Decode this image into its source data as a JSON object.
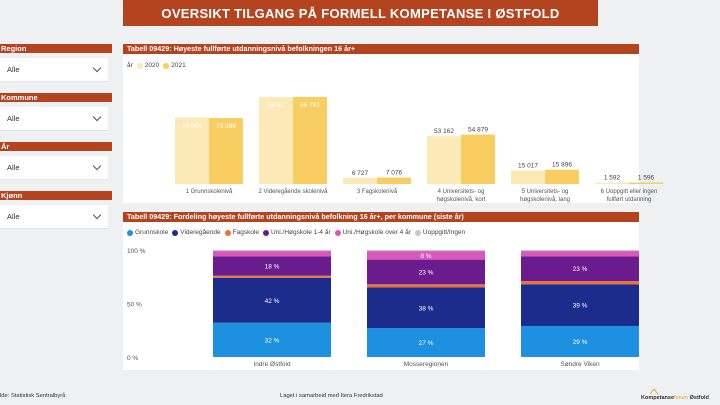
{
  "header": {
    "title": "OVERSIKT TILGANG PÅ FORMELL KOMPETANSE I ØSTFOLD"
  },
  "slicers": [
    {
      "label": "Region",
      "value": "Alle"
    },
    {
      "label": "Kommune",
      "value": "Alle"
    },
    {
      "label": "År",
      "value": "Alle"
    },
    {
      "label": "Kjønn",
      "value": "Alle"
    }
  ],
  "panel1": {
    "title": "Tabell 09429: Høyeste fullførte utdanningsnivå befolkningen 16 år+",
    "legend_title": "år",
    "series_names": [
      "2020",
      "2021"
    ]
  },
  "panel2": {
    "title": "Tabell 09429: Fordeling høyeste fullførte utdanningsnivå befolkning 16 år+, per kommune (siste år)",
    "legend": [
      "Grunnskole",
      "Videregående",
      "Fagskole",
      "Uni./Høgskole 1-4 år",
      "Uni./Høgskole over 4 år",
      "Uoppgitt/Ingen"
    ]
  },
  "chart_data": [
    {
      "type": "bar",
      "title": "Tabell 09429: Høyeste fullførte utdanningsnivå befolkningen 16 år+",
      "categories": [
        [
          "1 Grunnskolenivå"
        ],
        [
          "2 Videregående skolenivå"
        ],
        [
          "3 Fagskolenivå"
        ],
        [
          "4 Universitets- og",
          "høgskolenivå, kort"
        ],
        [
          "5 Universitets- og",
          "høgskolenivå, lang"
        ],
        [
          "6 Uoppgitt eller ingen",
          "fullført utdanning"
        ]
      ],
      "series": [
        {
          "name": "2020",
          "values": [
            74054,
            96600,
            6727,
            53162,
            15017,
            1592
          ],
          "labels": [
            "74 054",
            "96 6..",
            "6 727",
            "53 162",
            "15 017",
            "1 592"
          ]
        },
        {
          "name": "2021",
          "values": [
            73296,
            96791,
            7076,
            54879,
            15896,
            1596
          ],
          "labels": [
            "73 296",
            "96 791",
            "7 076",
            "54 879",
            "15 896",
            "1 596"
          ]
        }
      ],
      "colors": [
        "#fbe9b8",
        "#f8cd62"
      ],
      "legend_position": "top-left"
    },
    {
      "type": "bar",
      "stacked": true,
      "title": "Tabell 09429: Fordeling høyeste fullførte utdanningsnivå befolkning 16 år+, per kommune (siste år)",
      "categories": [
        "Indre Østfold",
        "Mosseregionen",
        "Søndre Viken"
      ],
      "yticks": [
        "0 %",
        "50 %",
        "100 %"
      ],
      "ylim": [
        0,
        100
      ],
      "series": [
        {
          "name": "Grunnskole",
          "values": [
            32,
            27,
            29
          ],
          "color": "#1e90e0"
        },
        {
          "name": "Videregående",
          "values": [
            42,
            38,
            39
          ],
          "color": "#1b2c8c"
        },
        {
          "name": "Fagskole",
          "values": [
            2,
            3,
            3
          ],
          "color": "#e9743d"
        },
        {
          "name": "Uni./Høgskole 1-4 år",
          "values": [
            18,
            23,
            23
          ],
          "color": "#6a1b8e"
        },
        {
          "name": "Uni./Høgskole over 4 år",
          "values": [
            5,
            8,
            5
          ],
          "color": "#d957b8"
        },
        {
          "name": "Uoppgitt/Ingen",
          "values": [
            1,
            1,
            1
          ],
          "color": "#c8c8c8"
        }
      ],
      "data_labels": [
        [
          "32 %",
          "27 %",
          "29 %"
        ],
        [
          "42 %",
          "38 %",
          "39 %"
        ],
        null,
        [
          "18 %",
          "23 %",
          "23 %"
        ],
        [
          null,
          "8 %",
          null
        ],
        null
      ],
      "legend_position": "top-left"
    }
  ],
  "footer": {
    "source": "lde: Statistisk Sentralbyrå",
    "credit": "Laget i samarbeid med Itera Fredrikstad",
    "logo_text_a": "Kompetanse",
    "logo_text_b": "forum",
    "logo_text_c": "Østfold"
  }
}
